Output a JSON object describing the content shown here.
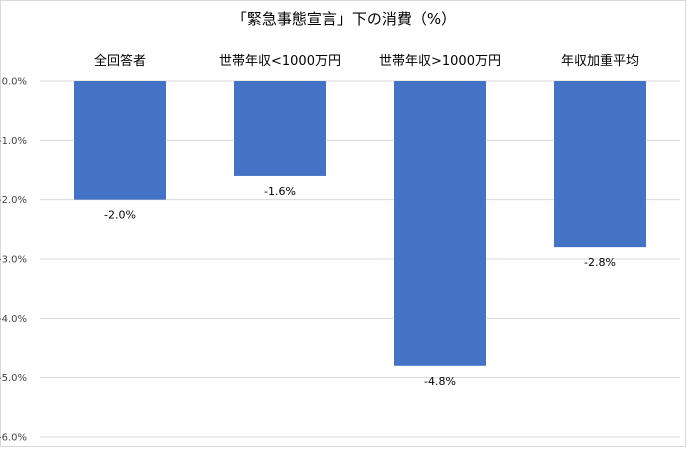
{
  "chart_data": {
    "type": "bar",
    "title": "「緊急事態宣言」下の消費（%）",
    "categories": [
      "全回答者",
      "世帯年収<1000万円",
      "世帯年収>1000万円",
      "年収加重平均"
    ],
    "values": [
      -2.0,
      -1.6,
      -4.8,
      -2.8
    ],
    "data_labels": [
      "-2.0%",
      "-1.6%",
      "-4.8%",
      "-2.8%"
    ],
    "yticks": [
      "0.0%",
      "-1.0%",
      "-2.0%",
      "-3.0%",
      "-4.0%",
      "-5.0%",
      "-6.0%"
    ],
    "ylim": [
      -6.0,
      0.0
    ],
    "bar_color": "#4472c4",
    "gridlines": true,
    "legend": "none"
  }
}
